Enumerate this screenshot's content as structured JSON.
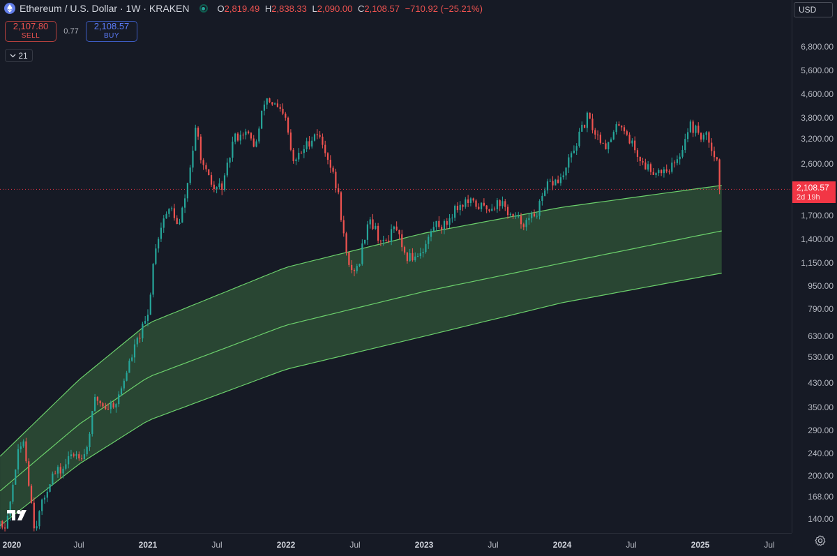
{
  "header": {
    "title": "Ethereum / U.S. Dollar · 1W · KRAKEN",
    "ohlc": [
      {
        "key": "O",
        "value": "2,819.49"
      },
      {
        "key": "H",
        "value": "2,838.33"
      },
      {
        "key": "L",
        "value": "2,090.00"
      },
      {
        "key": "C",
        "value": "2,108.57"
      }
    ],
    "change": "−710.92 (−25.21%)"
  },
  "trade": {
    "sell_price": "2,107.80",
    "sell_label": "SELL",
    "spread": "0.77",
    "buy_price": "2,108.57",
    "buy_label": "BUY"
  },
  "indicator_count": "21",
  "currency": "USD",
  "price_tag": {
    "price": "2,108.57",
    "countdown": "2d 19h"
  },
  "colors": {
    "up": "#26a69a",
    "down": "#ef5350",
    "band_fill": "#2d4f36",
    "band_line": "#6cd16c",
    "background": "#161a25"
  },
  "chart_data": {
    "type": "candlestick",
    "scale": "log",
    "ylim": [
      125,
      10000
    ],
    "y_ticks": [
      "6,800.00",
      "5,600.00",
      "4,600.00",
      "3,800.00",
      "3,200.00",
      "2,600.00",
      "1,700.00",
      "1,400.00",
      "1,150.00",
      "950.00",
      "790.00",
      "630.00",
      "530.00",
      "430.00",
      "350.00",
      "290.00",
      "240.00",
      "200.00",
      "168.00",
      "140.00"
    ],
    "x_ticks": [
      {
        "label": "2020",
        "year": true,
        "date": 2020.0
      },
      {
        "label": "Jul",
        "year": false,
        "date": 2020.5
      },
      {
        "label": "2021",
        "year": true,
        "date": 2021.0
      },
      {
        "label": "Jul",
        "year": false,
        "date": 2021.5
      },
      {
        "label": "2022",
        "year": true,
        "date": 2022.0
      },
      {
        "label": "Jul",
        "year": false,
        "date": 2022.5
      },
      {
        "label": "2023",
        "year": true,
        "date": 2023.0
      },
      {
        "label": "Jul",
        "year": false,
        "date": 2023.5
      },
      {
        "label": "2024",
        "year": true,
        "date": 2024.0
      },
      {
        "label": "Jul",
        "year": false,
        "date": 2024.5
      },
      {
        "label": "2025",
        "year": true,
        "date": 2025.0
      },
      {
        "label": "Jul",
        "year": false,
        "date": 2025.5
      }
    ],
    "last_price": 2108.57,
    "path": [
      [
        2019.85,
        130
      ],
      [
        2019.98,
        135
      ],
      [
        2020.05,
        230
      ],
      [
        2020.1,
        270
      ],
      [
        2020.18,
        130
      ],
      [
        2020.22,
        150
      ],
      [
        2020.3,
        200
      ],
      [
        2020.38,
        210
      ],
      [
        2020.45,
        240
      ],
      [
        2020.55,
        240
      ],
      [
        2020.62,
        380
      ],
      [
        2020.7,
        350
      ],
      [
        2020.78,
        370
      ],
      [
        2020.85,
        480
      ],
      [
        2020.92,
        600
      ],
      [
        2021.0,
        740
      ],
      [
        2021.05,
        1300
      ],
      [
        2021.12,
        1700
      ],
      [
        2021.18,
        1800
      ],
      [
        2021.22,
        1500
      ],
      [
        2021.28,
        2100
      ],
      [
        2021.35,
        3500
      ],
      [
        2021.4,
        2500
      ],
      [
        2021.48,
        2100
      ],
      [
        2021.55,
        2200
      ],
      [
        2021.62,
        3200
      ],
      [
        2021.7,
        3400
      ],
      [
        2021.78,
        3000
      ],
      [
        2021.85,
        4500
      ],
      [
        2021.92,
        4200
      ],
      [
        2022.0,
        3700
      ],
      [
        2022.05,
        2600
      ],
      [
        2022.12,
        2900
      ],
      [
        2022.22,
        3400
      ],
      [
        2022.3,
        2800
      ],
      [
        2022.38,
        2000
      ],
      [
        2022.45,
        1100
      ],
      [
        2022.52,
        1100
      ],
      [
        2022.6,
        1700
      ],
      [
        2022.7,
        1330
      ],
      [
        2022.8,
        1550
      ],
      [
        2022.85,
        1200
      ],
      [
        2022.92,
        1210
      ],
      [
        2023.0,
        1300
      ],
      [
        2023.08,
        1600
      ],
      [
        2023.15,
        1560
      ],
      [
        2023.22,
        1800
      ],
      [
        2023.3,
        1900
      ],
      [
        2023.38,
        1850
      ],
      [
        2023.45,
        1800
      ],
      [
        2023.55,
        1900
      ],
      [
        2023.65,
        1650
      ],
      [
        2023.75,
        1600
      ],
      [
        2023.83,
        1800
      ],
      [
        2023.9,
        2200
      ],
      [
        2024.0,
        2300
      ],
      [
        2024.08,
        2900
      ],
      [
        2024.18,
        3800
      ],
      [
        2024.25,
        3300
      ],
      [
        2024.33,
        3000
      ],
      [
        2024.42,
        3700
      ],
      [
        2024.5,
        3100
      ],
      [
        2024.58,
        2600
      ],
      [
        2024.67,
        2450
      ],
      [
        2024.75,
        2500
      ],
      [
        2024.83,
        2600
      ],
      [
        2024.92,
        3600
      ],
      [
        2025.0,
        3300
      ],
      [
        2025.06,
        3200
      ],
      [
        2025.12,
        2700
      ],
      [
        2025.155,
        2108.57
      ]
    ],
    "bands": [
      {
        "name": "upper",
        "points": [
          [
            2019.95,
            240
          ],
          [
            2020.5,
            440
          ],
          [
            2021.0,
            700
          ],
          [
            2022.0,
            1110
          ],
          [
            2023.0,
            1470
          ],
          [
            2024.0,
            1820
          ],
          [
            2025.16,
            2180
          ]
        ]
      },
      {
        "name": "middle",
        "points": [
          [
            2019.95,
            180
          ],
          [
            2020.5,
            305
          ],
          [
            2021.0,
            450
          ],
          [
            2022.0,
            690
          ],
          [
            2023.0,
            910
          ],
          [
            2024.0,
            1150
          ],
          [
            2025.16,
            1500
          ]
        ]
      },
      {
        "name": "lower",
        "points": [
          [
            2019.95,
            135
          ],
          [
            2020.5,
            220
          ],
          [
            2021.0,
            315
          ],
          [
            2022.0,
            480
          ],
          [
            2023.0,
            630
          ],
          [
            2024.0,
            830
          ],
          [
            2025.16,
            1060
          ]
        ]
      }
    ]
  }
}
